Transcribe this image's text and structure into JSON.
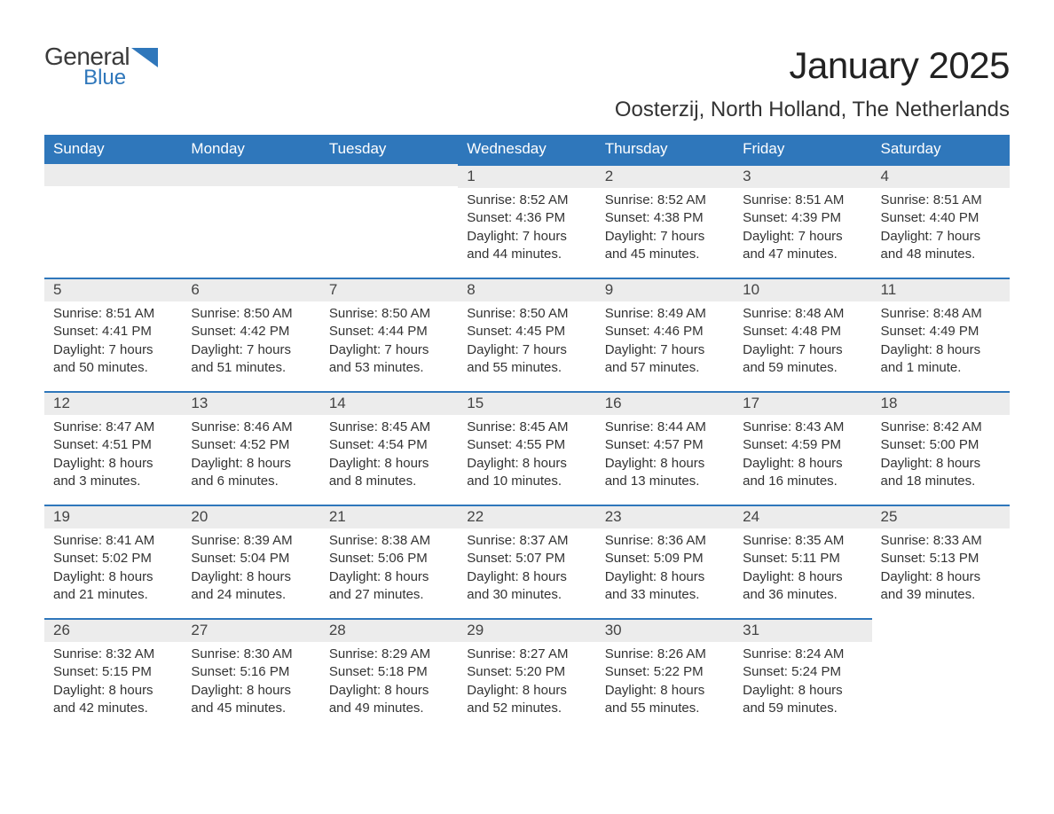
{
  "brand": {
    "name_part1": "General",
    "name_part2": "Blue",
    "color_primary": "#2f77bb",
    "color_text": "#3a3a3a"
  },
  "header": {
    "month_title": "January 2025",
    "location": "Oosterzij, North Holland, The Netherlands"
  },
  "calendar": {
    "day_names": [
      "Sunday",
      "Monday",
      "Tuesday",
      "Wednesday",
      "Thursday",
      "Friday",
      "Saturday"
    ],
    "header_bg": "#2f77bb",
    "header_fg": "#ffffff",
    "daynum_bg": "#ececec",
    "daynum_border": "#2f77bb",
    "text_color": "#333333",
    "weeks": [
      [
        null,
        null,
        null,
        {
          "n": "1",
          "sunrise": "Sunrise: 8:52 AM",
          "sunset": "Sunset: 4:36 PM",
          "dl1": "Daylight: 7 hours",
          "dl2": "and 44 minutes."
        },
        {
          "n": "2",
          "sunrise": "Sunrise: 8:52 AM",
          "sunset": "Sunset: 4:38 PM",
          "dl1": "Daylight: 7 hours",
          "dl2": "and 45 minutes."
        },
        {
          "n": "3",
          "sunrise": "Sunrise: 8:51 AM",
          "sunset": "Sunset: 4:39 PM",
          "dl1": "Daylight: 7 hours",
          "dl2": "and 47 minutes."
        },
        {
          "n": "4",
          "sunrise": "Sunrise: 8:51 AM",
          "sunset": "Sunset: 4:40 PM",
          "dl1": "Daylight: 7 hours",
          "dl2": "and 48 minutes."
        }
      ],
      [
        {
          "n": "5",
          "sunrise": "Sunrise: 8:51 AM",
          "sunset": "Sunset: 4:41 PM",
          "dl1": "Daylight: 7 hours",
          "dl2": "and 50 minutes."
        },
        {
          "n": "6",
          "sunrise": "Sunrise: 8:50 AM",
          "sunset": "Sunset: 4:42 PM",
          "dl1": "Daylight: 7 hours",
          "dl2": "and 51 minutes."
        },
        {
          "n": "7",
          "sunrise": "Sunrise: 8:50 AM",
          "sunset": "Sunset: 4:44 PM",
          "dl1": "Daylight: 7 hours",
          "dl2": "and 53 minutes."
        },
        {
          "n": "8",
          "sunrise": "Sunrise: 8:50 AM",
          "sunset": "Sunset: 4:45 PM",
          "dl1": "Daylight: 7 hours",
          "dl2": "and 55 minutes."
        },
        {
          "n": "9",
          "sunrise": "Sunrise: 8:49 AM",
          "sunset": "Sunset: 4:46 PM",
          "dl1": "Daylight: 7 hours",
          "dl2": "and 57 minutes."
        },
        {
          "n": "10",
          "sunrise": "Sunrise: 8:48 AM",
          "sunset": "Sunset: 4:48 PM",
          "dl1": "Daylight: 7 hours",
          "dl2": "and 59 minutes."
        },
        {
          "n": "11",
          "sunrise": "Sunrise: 8:48 AM",
          "sunset": "Sunset: 4:49 PM",
          "dl1": "Daylight: 8 hours",
          "dl2": "and 1 minute."
        }
      ],
      [
        {
          "n": "12",
          "sunrise": "Sunrise: 8:47 AM",
          "sunset": "Sunset: 4:51 PM",
          "dl1": "Daylight: 8 hours",
          "dl2": "and 3 minutes."
        },
        {
          "n": "13",
          "sunrise": "Sunrise: 8:46 AM",
          "sunset": "Sunset: 4:52 PM",
          "dl1": "Daylight: 8 hours",
          "dl2": "and 6 minutes."
        },
        {
          "n": "14",
          "sunrise": "Sunrise: 8:45 AM",
          "sunset": "Sunset: 4:54 PM",
          "dl1": "Daylight: 8 hours",
          "dl2": "and 8 minutes."
        },
        {
          "n": "15",
          "sunrise": "Sunrise: 8:45 AM",
          "sunset": "Sunset: 4:55 PM",
          "dl1": "Daylight: 8 hours",
          "dl2": "and 10 minutes."
        },
        {
          "n": "16",
          "sunrise": "Sunrise: 8:44 AM",
          "sunset": "Sunset: 4:57 PM",
          "dl1": "Daylight: 8 hours",
          "dl2": "and 13 minutes."
        },
        {
          "n": "17",
          "sunrise": "Sunrise: 8:43 AM",
          "sunset": "Sunset: 4:59 PM",
          "dl1": "Daylight: 8 hours",
          "dl2": "and 16 minutes."
        },
        {
          "n": "18",
          "sunrise": "Sunrise: 8:42 AM",
          "sunset": "Sunset: 5:00 PM",
          "dl1": "Daylight: 8 hours",
          "dl2": "and 18 minutes."
        }
      ],
      [
        {
          "n": "19",
          "sunrise": "Sunrise: 8:41 AM",
          "sunset": "Sunset: 5:02 PM",
          "dl1": "Daylight: 8 hours",
          "dl2": "and 21 minutes."
        },
        {
          "n": "20",
          "sunrise": "Sunrise: 8:39 AM",
          "sunset": "Sunset: 5:04 PM",
          "dl1": "Daylight: 8 hours",
          "dl2": "and 24 minutes."
        },
        {
          "n": "21",
          "sunrise": "Sunrise: 8:38 AM",
          "sunset": "Sunset: 5:06 PM",
          "dl1": "Daylight: 8 hours",
          "dl2": "and 27 minutes."
        },
        {
          "n": "22",
          "sunrise": "Sunrise: 8:37 AM",
          "sunset": "Sunset: 5:07 PM",
          "dl1": "Daylight: 8 hours",
          "dl2": "and 30 minutes."
        },
        {
          "n": "23",
          "sunrise": "Sunrise: 8:36 AM",
          "sunset": "Sunset: 5:09 PM",
          "dl1": "Daylight: 8 hours",
          "dl2": "and 33 minutes."
        },
        {
          "n": "24",
          "sunrise": "Sunrise: 8:35 AM",
          "sunset": "Sunset: 5:11 PM",
          "dl1": "Daylight: 8 hours",
          "dl2": "and 36 minutes."
        },
        {
          "n": "25",
          "sunrise": "Sunrise: 8:33 AM",
          "sunset": "Sunset: 5:13 PM",
          "dl1": "Daylight: 8 hours",
          "dl2": "and 39 minutes."
        }
      ],
      [
        {
          "n": "26",
          "sunrise": "Sunrise: 8:32 AM",
          "sunset": "Sunset: 5:15 PM",
          "dl1": "Daylight: 8 hours",
          "dl2": "and 42 minutes."
        },
        {
          "n": "27",
          "sunrise": "Sunrise: 8:30 AM",
          "sunset": "Sunset: 5:16 PM",
          "dl1": "Daylight: 8 hours",
          "dl2": "and 45 minutes."
        },
        {
          "n": "28",
          "sunrise": "Sunrise: 8:29 AM",
          "sunset": "Sunset: 5:18 PM",
          "dl1": "Daylight: 8 hours",
          "dl2": "and 49 minutes."
        },
        {
          "n": "29",
          "sunrise": "Sunrise: 8:27 AM",
          "sunset": "Sunset: 5:20 PM",
          "dl1": "Daylight: 8 hours",
          "dl2": "and 52 minutes."
        },
        {
          "n": "30",
          "sunrise": "Sunrise: 8:26 AM",
          "sunset": "Sunset: 5:22 PM",
          "dl1": "Daylight: 8 hours",
          "dl2": "and 55 minutes."
        },
        {
          "n": "31",
          "sunrise": "Sunrise: 8:24 AM",
          "sunset": "Sunset: 5:24 PM",
          "dl1": "Daylight: 8 hours",
          "dl2": "and 59 minutes."
        },
        null
      ]
    ]
  }
}
